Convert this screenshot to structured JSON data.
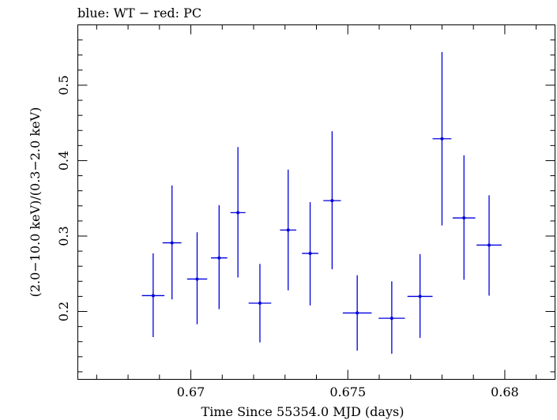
{
  "chart_data": {
    "type": "scatter",
    "title": "blue: WT − red: PC",
    "xlabel": "Time Since 55354.0 MJD (days)",
    "ylabel": "(2.0−10.0 keV)/(0.3−2.0 keV)",
    "xlim": [
      0.6664,
      0.6816
    ],
    "ylim": [
      0.11,
      0.58
    ],
    "xticks_major": [
      0.67,
      0.675,
      0.68
    ],
    "xtick_labels": [
      "0.67",
      "0.675",
      "0.68"
    ],
    "yticks_major": [
      0.2,
      0.3,
      0.4,
      0.5
    ],
    "ytick_labels": [
      "0.2",
      "0.3",
      "0.4",
      "0.5"
    ],
    "grid": false,
    "series": [
      {
        "color": "#0000dd",
        "points": [
          {
            "x": 0.6688,
            "xerr": 0.00036,
            "y": 0.221,
            "ylo": 0.166,
            "yhi": 0.277
          },
          {
            "x": 0.6694,
            "xerr": 0.0003,
            "y": 0.291,
            "ylo": 0.216,
            "yhi": 0.367
          },
          {
            "x": 0.6702,
            "xerr": 0.00032,
            "y": 0.243,
            "ylo": 0.183,
            "yhi": 0.305
          },
          {
            "x": 0.6709,
            "xerr": 0.00026,
            "y": 0.271,
            "ylo": 0.203,
            "yhi": 0.341
          },
          {
            "x": 0.6715,
            "xerr": 0.00024,
            "y": 0.331,
            "ylo": 0.245,
            "yhi": 0.418
          },
          {
            "x": 0.6722,
            "xerr": 0.00036,
            "y": 0.211,
            "ylo": 0.159,
            "yhi": 0.263
          },
          {
            "x": 0.6731,
            "xerr": 0.00026,
            "y": 0.308,
            "ylo": 0.228,
            "yhi": 0.388
          },
          {
            "x": 0.6738,
            "xerr": 0.00026,
            "y": 0.277,
            "ylo": 0.208,
            "yhi": 0.345
          },
          {
            "x": 0.6745,
            "xerr": 0.00028,
            "y": 0.347,
            "ylo": 0.256,
            "yhi": 0.439
          },
          {
            "x": 0.6753,
            "xerr": 0.00046,
            "y": 0.198,
            "ylo": 0.148,
            "yhi": 0.248
          },
          {
            "x": 0.6764,
            "xerr": 0.00042,
            "y": 0.191,
            "ylo": 0.144,
            "yhi": 0.24
          },
          {
            "x": 0.6773,
            "xerr": 0.0004,
            "y": 0.22,
            "ylo": 0.165,
            "yhi": 0.276
          },
          {
            "x": 0.678,
            "xerr": 0.0003,
            "y": 0.429,
            "ylo": 0.314,
            "yhi": 0.544
          },
          {
            "x": 0.6787,
            "xerr": 0.00036,
            "y": 0.324,
            "ylo": 0.242,
            "yhi": 0.407
          },
          {
            "x": 0.6795,
            "xerr": 0.0004,
            "y": 0.288,
            "ylo": 0.221,
            "yhi": 0.354
          }
        ]
      }
    ]
  }
}
